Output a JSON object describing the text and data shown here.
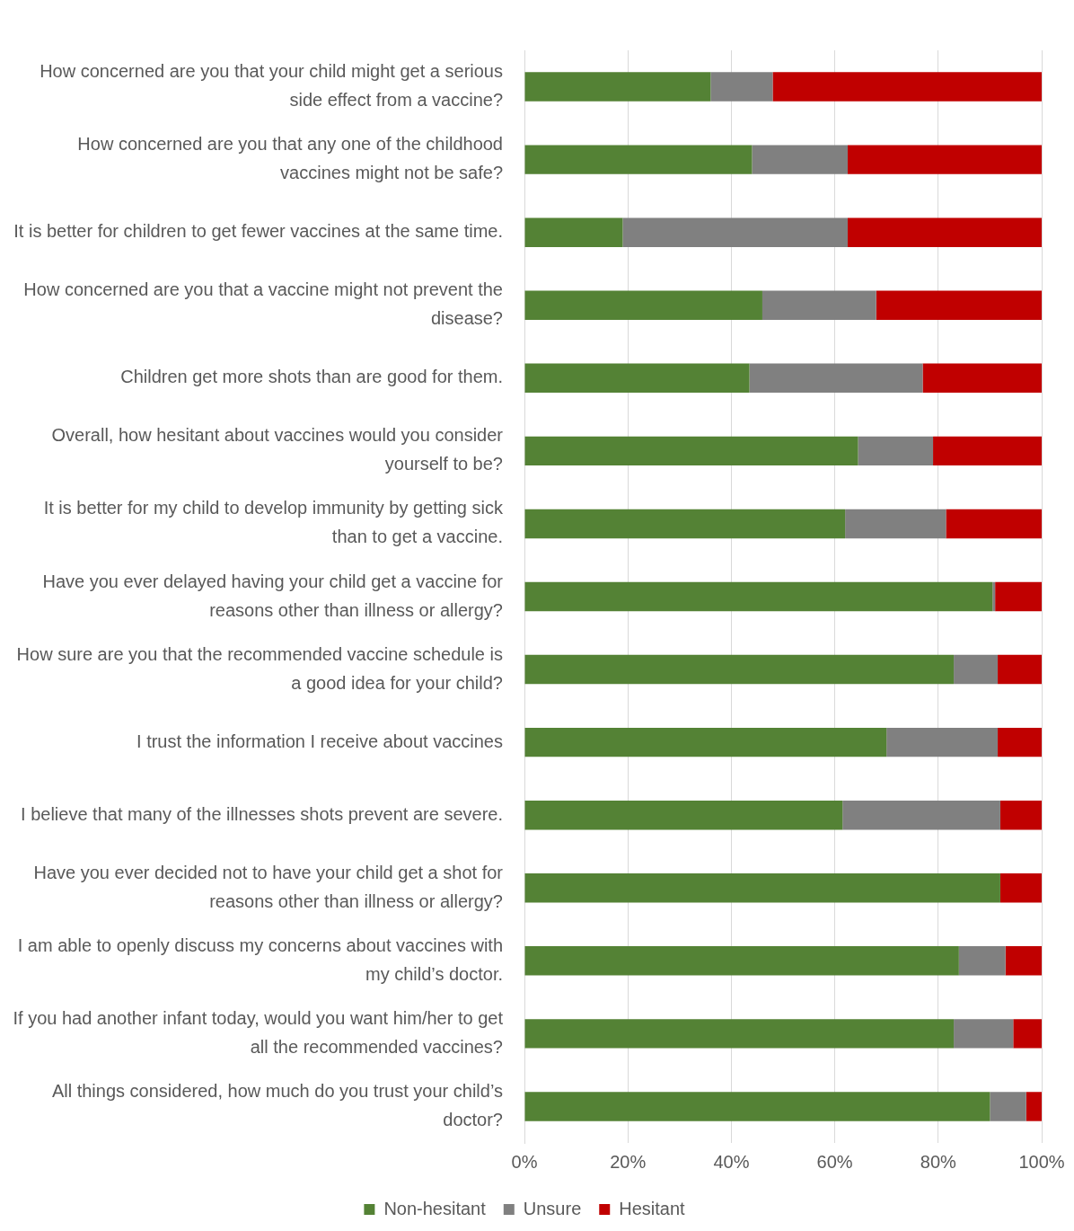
{
  "chart_data": {
    "type": "bar",
    "orientation": "horizontal",
    "stacked": true,
    "categories": [
      "How concerned are you that your child might get a serious side effect from a vaccine?",
      "How concerned are you that any one of the childhood vaccines might not be safe?",
      "It is better for children to get fewer vaccines at the same time.",
      "How concerned are you that a vaccine might not prevent the disease?",
      "Children get more shots than are good for them.",
      "Overall, how hesitant about vaccines would you consider yourself to be?",
      "It is better for my child to develop immunity by getting sick than to get a vaccine.",
      "Have you ever delayed having your child get a vaccine for reasons other than illness or allergy?",
      "How sure are you that the recommended vaccine schedule is a good idea for your child?",
      "I trust the information I receive about vaccines",
      "I believe that many of the illnesses shots prevent are severe.",
      "Have you ever decided not to have your child get a shot for reasons other than illness or allergy?",
      "I am able to openly discuss my concerns about vaccines with my child’s doctor.",
      "If you had another infant today, would you want him/her to get all the recommended vaccines?",
      "All things considered, how much do you trust your child’s doctor?"
    ],
    "series": [
      {
        "name": "Non-hesitant",
        "color": "#548235",
        "values": [
          36,
          44,
          19,
          46,
          43.5,
          64.5,
          62,
          90.5,
          83,
          70,
          61.5,
          92,
          84,
          83,
          90
        ]
      },
      {
        "name": "Unsure",
        "color": "#808080",
        "values": [
          12,
          18.5,
          43.5,
          22,
          33.5,
          14.5,
          19.5,
          0.5,
          8.5,
          21.5,
          30.5,
          0,
          9,
          11.5,
          7
        ]
      },
      {
        "name": "Hesitant",
        "color": "#c00000",
        "values": [
          52,
          37.5,
          37.5,
          32,
          23,
          21,
          18.5,
          9,
          8.5,
          8.5,
          8,
          8,
          7,
          5.5,
          3
        ]
      }
    ],
    "xlim": [
      0,
      100
    ],
    "xticks": [
      {
        "value": 0,
        "label": "0%"
      },
      {
        "value": 20,
        "label": "20%"
      },
      {
        "value": 40,
        "label": "40%"
      },
      {
        "value": 60,
        "label": "60%"
      },
      {
        "value": 80,
        "label": "80%"
      },
      {
        "value": 100,
        "label": "100%"
      }
    ],
    "grid": "x",
    "legend": "bottom"
  }
}
